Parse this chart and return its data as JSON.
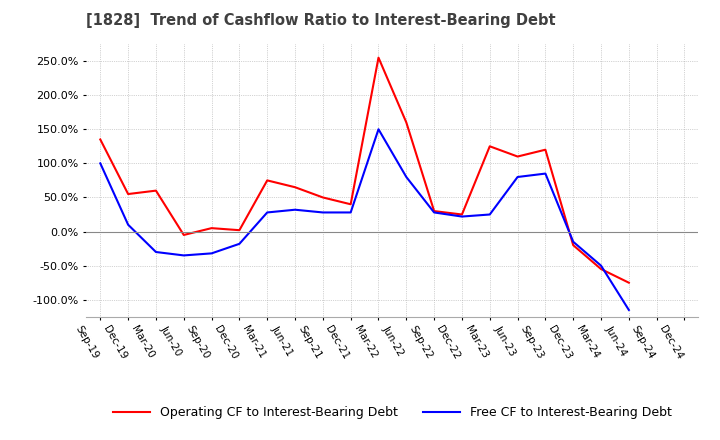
{
  "title": "[1828]  Trend of Cashflow Ratio to Interest-Bearing Debt",
  "title_color": "#404040",
  "x_labels": [
    "Sep-19",
    "Dec-19",
    "Mar-20",
    "Jun-20",
    "Sep-20",
    "Dec-20",
    "Mar-21",
    "Jun-21",
    "Sep-21",
    "Dec-21",
    "Mar-22",
    "Jun-22",
    "Sep-22",
    "Dec-22",
    "Mar-23",
    "Jun-23",
    "Sep-23",
    "Dec-23",
    "Mar-24",
    "Jun-24",
    "Sep-24",
    "Dec-24"
  ],
  "operating_cf": [
    135,
    55,
    60,
    -5,
    5,
    2,
    75,
    65,
    50,
    40,
    255,
    160,
    30,
    25,
    125,
    110,
    120,
    -20,
    -55,
    -75,
    null,
    null
  ],
  "free_cf": [
    100,
    10,
    -30,
    -35,
    -32,
    -18,
    28,
    32,
    28,
    28,
    150,
    80,
    28,
    22,
    25,
    80,
    85,
    -15,
    -50,
    -115,
    null,
    null
  ],
  "ylim": [
    -125,
    275
  ],
  "yticks": [
    -100,
    -50,
    0,
    50,
    100,
    150,
    200,
    250
  ],
  "operating_color": "#ff0000",
  "free_color": "#0000ff",
  "grid_color": "#aaaaaa",
  "zero_line_color": "#888888",
  "background_color": "#ffffff",
  "legend_operating": "Operating CF to Interest-Bearing Debt",
  "legend_free": "Free CF to Interest-Bearing Debt"
}
